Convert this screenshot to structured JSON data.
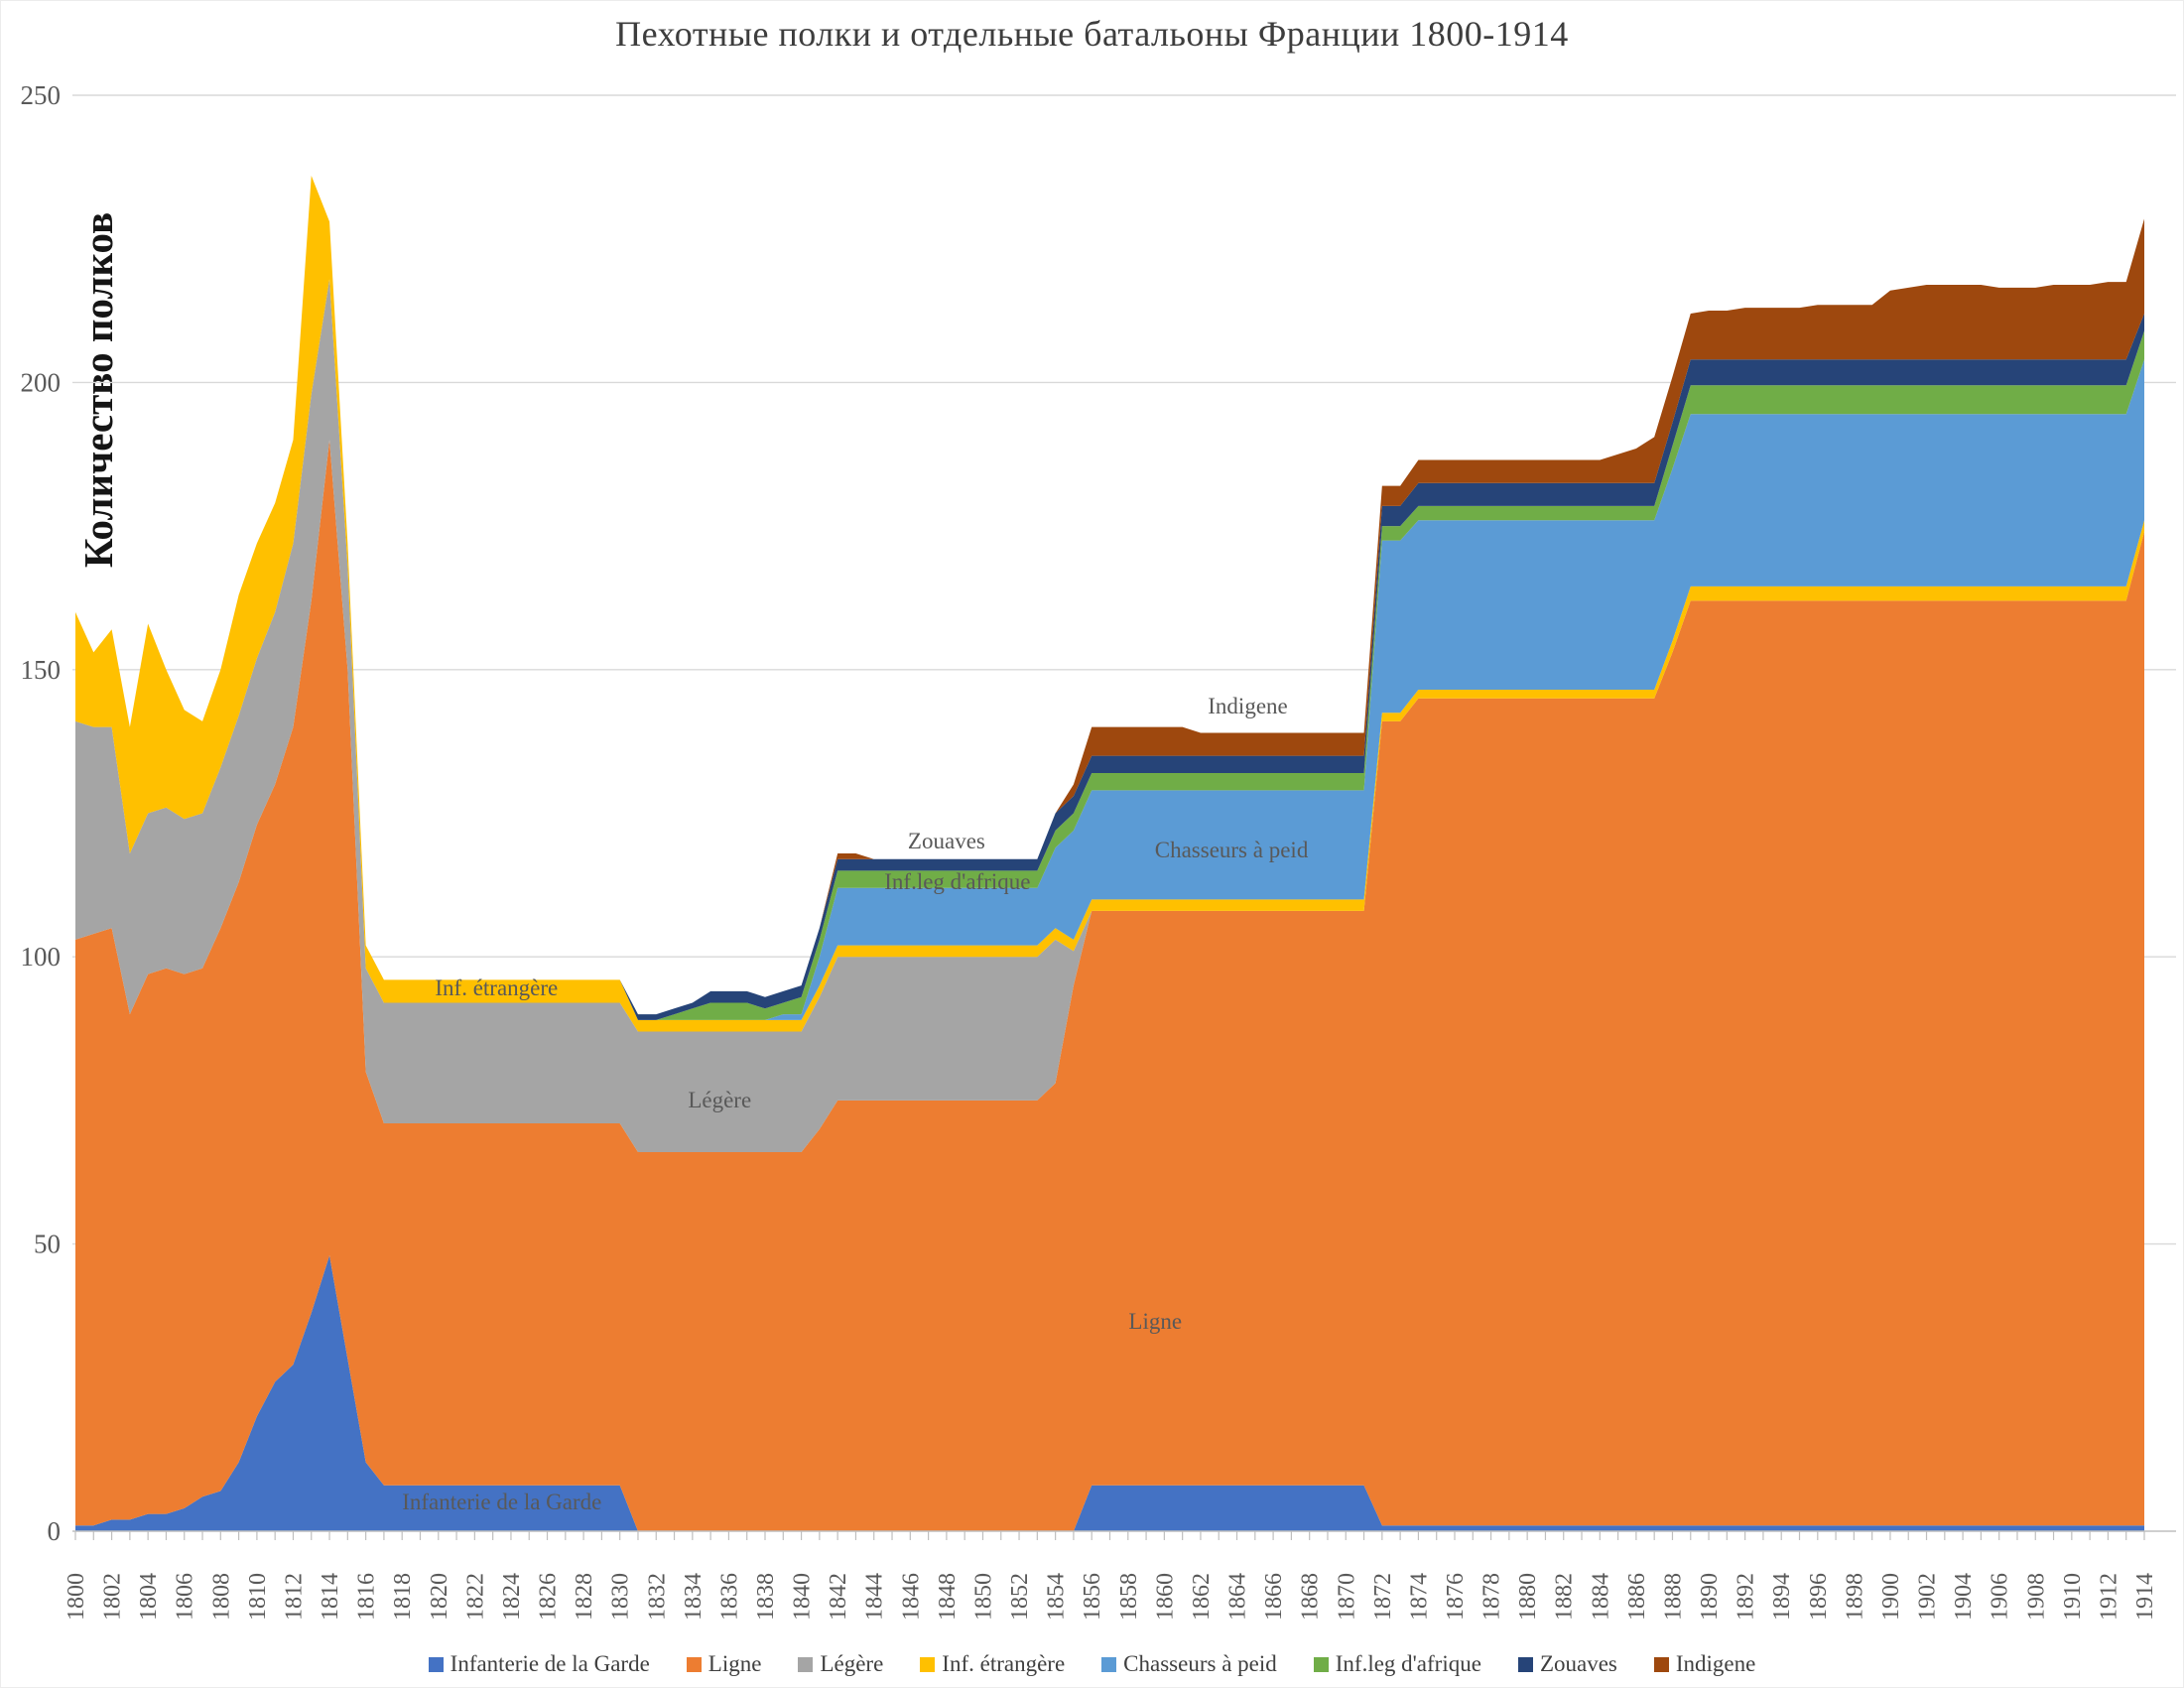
{
  "title": "Пехотные полки и отдельные батальоны Франции 1800-1914",
  "y_axis_title": "Количество полков",
  "colors": {
    "grid": "#d9d9d9",
    "axis": "#bfbfbf",
    "tick_label": "#595959",
    "title_text": "#3d3d3d",
    "annotation_text": "#595959",
    "legend_text": "#404040"
  },
  "chart_data": {
    "type": "area",
    "stacked": true,
    "title": "Пехотные полки и отдельные батальоны Франции 1800-1914",
    "xlabel": "",
    "ylabel": "Количество полков",
    "x_start": 1800,
    "x_end": 1914,
    "x_label_step": 2,
    "ylim": [
      0,
      250
    ],
    "ytick_step": 50,
    "grid": "horizontal",
    "legend_position": "bottom",
    "series": [
      {
        "name": "Infanterie de la Garde",
        "color": "#4472c4",
        "values": [
          1,
          1,
          2,
          2,
          3,
          3,
          4,
          6,
          7,
          12,
          20,
          26,
          29,
          38,
          48,
          30,
          12,
          8,
          8,
          8,
          8,
          8,
          8,
          8,
          8,
          8,
          8,
          8,
          8,
          8,
          8,
          0,
          0,
          0,
          0,
          0,
          0,
          0,
          0,
          0,
          0,
          0,
          0,
          0,
          0,
          0,
          0,
          0,
          0,
          0,
          0,
          0,
          0,
          0,
          0,
          0,
          8,
          8,
          8,
          8,
          8,
          8,
          8,
          8,
          8,
          8,
          8,
          8,
          8,
          8,
          8,
          8,
          1,
          1,
          1,
          1,
          1,
          1,
          1,
          1,
          1,
          1,
          1,
          1,
          1,
          1,
          1,
          1,
          1,
          1,
          1,
          1,
          1,
          1,
          1,
          1,
          1,
          1,
          1,
          1,
          1,
          1,
          1,
          1,
          1,
          1,
          1,
          1,
          1,
          1,
          1,
          1,
          1,
          1,
          1
        ]
      },
      {
        "name": "Ligne",
        "color": "#ed7d31",
        "values": [
          102,
          103,
          103,
          88,
          94,
          95,
          93,
          92,
          98,
          101,
          103,
          104,
          111,
          124,
          142,
          120,
          68,
          63,
          63,
          63,
          63,
          63,
          63,
          63,
          63,
          63,
          63,
          63,
          63,
          63,
          63,
          66,
          66,
          66,
          66,
          66,
          66,
          66,
          66,
          66,
          66,
          70,
          75,
          75,
          75,
          75,
          75,
          75,
          75,
          75,
          75,
          75,
          75,
          75,
          78,
          95,
          100,
          100,
          100,
          100,
          100,
          100,
          100,
          100,
          100,
          100,
          100,
          100,
          100,
          100,
          100,
          100,
          140,
          140,
          144,
          144,
          144,
          144,
          144,
          144,
          144,
          144,
          144,
          144,
          144,
          144,
          144,
          144,
          152,
          161,
          161,
          161,
          161,
          161,
          161,
          161,
          161,
          161,
          161,
          161,
          161,
          161,
          161,
          161,
          161,
          161,
          161,
          161,
          161,
          161,
          161,
          161,
          161,
          161,
          173
        ]
      },
      {
        "name": "Légère",
        "color": "#a5a5a5",
        "values": [
          38,
          36,
          35,
          28,
          28,
          28,
          27,
          27,
          28,
          29,
          29,
          30,
          32,
          36,
          28,
          18,
          18,
          21,
          21,
          21,
          21,
          21,
          21,
          21,
          21,
          21,
          21,
          21,
          21,
          21,
          21,
          21,
          21,
          21,
          21,
          21,
          21,
          21,
          21,
          21,
          21,
          23,
          25,
          25,
          25,
          25,
          25,
          25,
          25,
          25,
          25,
          25,
          25,
          25,
          25,
          6,
          0,
          0,
          0,
          0,
          0,
          0,
          0,
          0,
          0,
          0,
          0,
          0,
          0,
          0,
          0,
          0,
          0,
          0,
          0,
          0,
          0,
          0,
          0,
          0,
          0,
          0,
          0,
          0,
          0,
          0,
          0,
          0,
          0,
          0,
          0,
          0,
          0,
          0,
          0,
          0,
          0,
          0,
          0,
          0,
          0,
          0,
          0,
          0,
          0,
          0,
          0,
          0,
          0,
          0,
          0,
          0,
          0,
          0,
          0
        ]
      },
      {
        "name": "Inf. étrangère",
        "color": "#ffc000",
        "values": [
          19,
          13,
          17,
          22,
          33,
          24,
          19,
          16,
          17,
          21,
          20,
          19,
          18,
          38,
          10,
          4,
          4,
          4,
          4,
          4,
          4,
          4,
          4,
          4,
          4,
          4,
          4,
          4,
          4,
          4,
          4,
          2,
          2,
          2,
          2,
          2,
          2,
          2,
          2,
          2,
          2,
          2,
          2,
          2,
          2,
          2,
          2,
          2,
          2,
          2,
          2,
          2,
          2,
          2,
          2,
          2,
          2,
          2,
          2,
          2,
          2,
          2,
          2,
          2,
          2,
          2,
          2,
          2,
          2,
          2,
          2,
          2,
          1.5,
          1.5,
          1.5,
          1.5,
          1.5,
          1.5,
          1.5,
          1.5,
          1.5,
          1.5,
          1.5,
          1.5,
          1.5,
          1.5,
          1.5,
          1.5,
          2,
          2.5,
          2.5,
          2.5,
          2.5,
          2.5,
          2.5,
          2.5,
          2.5,
          2.5,
          2.5,
          2.5,
          2.5,
          2.5,
          2.5,
          2.5,
          2.5,
          2.5,
          2.5,
          2.5,
          2.5,
          2.5,
          2.5,
          2.5,
          2.5,
          2.5,
          2
        ]
      },
      {
        "name": "Chasseurs à peid",
        "color": "#5b9bd5",
        "values": [
          0,
          0,
          0,
          0,
          0,
          0,
          0,
          0,
          0,
          0,
          0,
          0,
          0,
          0,
          0,
          0,
          0,
          0,
          0,
          0,
          0,
          0,
          0,
          0,
          0,
          0,
          0,
          0,
          0,
          0,
          0,
          0,
          0,
          0,
          0,
          0,
          0,
          0,
          0,
          1,
          1,
          5,
          10,
          10,
          10,
          10,
          10,
          10,
          10,
          10,
          10,
          10,
          10,
          10,
          14,
          19,
          19,
          19,
          19,
          19,
          19,
          19,
          19,
          19,
          19,
          19,
          19,
          19,
          19,
          19,
          19,
          19,
          30,
          30,
          29.5,
          29.5,
          29.5,
          29.5,
          29.5,
          29.5,
          29.5,
          29.5,
          29.5,
          29.5,
          29.5,
          29.5,
          29.5,
          29.5,
          30,
          30,
          30,
          30,
          30,
          30,
          30,
          30,
          30,
          30,
          30,
          30,
          30,
          30,
          30,
          30,
          30,
          30,
          30,
          30,
          30,
          30,
          30,
          30,
          30,
          30,
          28
        ]
      },
      {
        "name": "Inf.leg d'afrique",
        "color": "#70ad47",
        "values": [
          0,
          0,
          0,
          0,
          0,
          0,
          0,
          0,
          0,
          0,
          0,
          0,
          0,
          0,
          0,
          0,
          0,
          0,
          0,
          0,
          0,
          0,
          0,
          0,
          0,
          0,
          0,
          0,
          0,
          0,
          0,
          0,
          0,
          1,
          2,
          3,
          3,
          3,
          2,
          2,
          3,
          3,
          3,
          3,
          3,
          3,
          3,
          3,
          3,
          3,
          3,
          3,
          3,
          3,
          3,
          3,
          3,
          3,
          3,
          3,
          3,
          3,
          3,
          3,
          3,
          3,
          3,
          3,
          3,
          3,
          3,
          3,
          2.5,
          2.5,
          2.5,
          2.5,
          2.5,
          2.5,
          2.5,
          2.5,
          2.5,
          2.5,
          2.5,
          2.5,
          2.5,
          2.5,
          2.5,
          2.5,
          4,
          5,
          5,
          5,
          5,
          5,
          5,
          5,
          5,
          5,
          5,
          5,
          5,
          5,
          5,
          5,
          5,
          5,
          5,
          5,
          5,
          5,
          5,
          5,
          5,
          5,
          5,
          4.5
        ]
      },
      {
        "name": "Zouaves",
        "color": "#264478",
        "values": [
          0,
          0,
          0,
          0,
          0,
          0,
          0,
          0,
          0,
          0,
          0,
          0,
          0,
          0,
          0,
          0,
          0,
          0,
          0,
          0,
          0,
          0,
          0,
          0,
          0,
          0,
          0,
          0,
          0,
          0,
          0,
          1,
          1,
          1,
          1,
          2,
          2,
          2,
          2,
          2,
          2,
          2,
          2,
          2,
          2,
          2,
          2,
          2,
          2,
          2,
          2,
          2,
          2,
          2,
          3,
          3,
          3,
          3,
          3,
          3,
          3,
          3,
          3,
          3,
          3,
          3,
          3,
          3,
          3,
          3,
          3,
          3,
          3.5,
          3.5,
          4,
          4,
          4,
          4,
          4,
          4,
          4,
          4,
          4,
          4,
          4,
          4,
          4,
          4,
          4,
          4.5,
          4.5,
          4.5,
          4.5,
          4.5,
          4.5,
          4.5,
          4.5,
          4.5,
          4.5,
          4.5,
          4.5,
          4.5,
          4.5,
          4.5,
          4.5,
          4.5,
          4.5,
          4.5,
          4.5,
          4.5,
          4.5,
          4.5,
          4.5,
          4.5,
          3
        ]
      },
      {
        "name": "Indigene",
        "color": "#9e480e",
        "values": [
          0,
          0,
          0,
          0,
          0,
          0,
          0,
          0,
          0,
          0,
          0,
          0,
          0,
          0,
          0,
          0,
          0,
          0,
          0,
          0,
          0,
          0,
          0,
          0,
          0,
          0,
          0,
          0,
          0,
          0,
          0,
          0,
          0,
          0,
          0,
          0,
          0,
          0,
          0,
          0,
          0,
          0,
          1,
          1,
          0,
          0,
          0,
          0,
          0,
          0,
          0,
          0,
          0,
          0,
          0,
          2,
          5,
          5,
          5,
          5,
          5,
          5,
          4,
          4,
          4,
          4,
          4,
          4,
          4,
          4,
          4,
          4,
          3.5,
          3.5,
          4,
          4,
          4,
          4,
          4,
          4,
          4,
          4,
          4,
          4,
          4,
          5,
          6,
          8,
          8,
          8,
          8.5,
          8.5,
          9,
          9,
          9,
          9,
          9.5,
          9.5,
          9.5,
          9.5,
          12,
          12.5,
          13,
          13,
          13,
          13,
          12.5,
          12.5,
          12.5,
          13,
          13,
          13,
          13.5,
          13.5,
          16.5
        ]
      }
    ],
    "annotations": [
      {
        "text": "Infanterie de la Garde",
        "year": 1823.5,
        "value": 5
      },
      {
        "text": "Inf. étrangère",
        "year": 1823.2,
        "value": 94.5
      },
      {
        "text": "Légère",
        "year": 1835.5,
        "value": 75
      },
      {
        "text": "Ligne",
        "year": 1859.5,
        "value": 36.5
      },
      {
        "text": "Zouaves",
        "year": 1848,
        "value": 120
      },
      {
        "text": "Inf.leg d'afrique",
        "year": 1848.6,
        "value": 113
      },
      {
        "text": "Chasseurs à peid",
        "year": 1863.7,
        "value": 118.5
      },
      {
        "text": "Indigene",
        "year": 1864.6,
        "value": 143.5
      }
    ]
  }
}
